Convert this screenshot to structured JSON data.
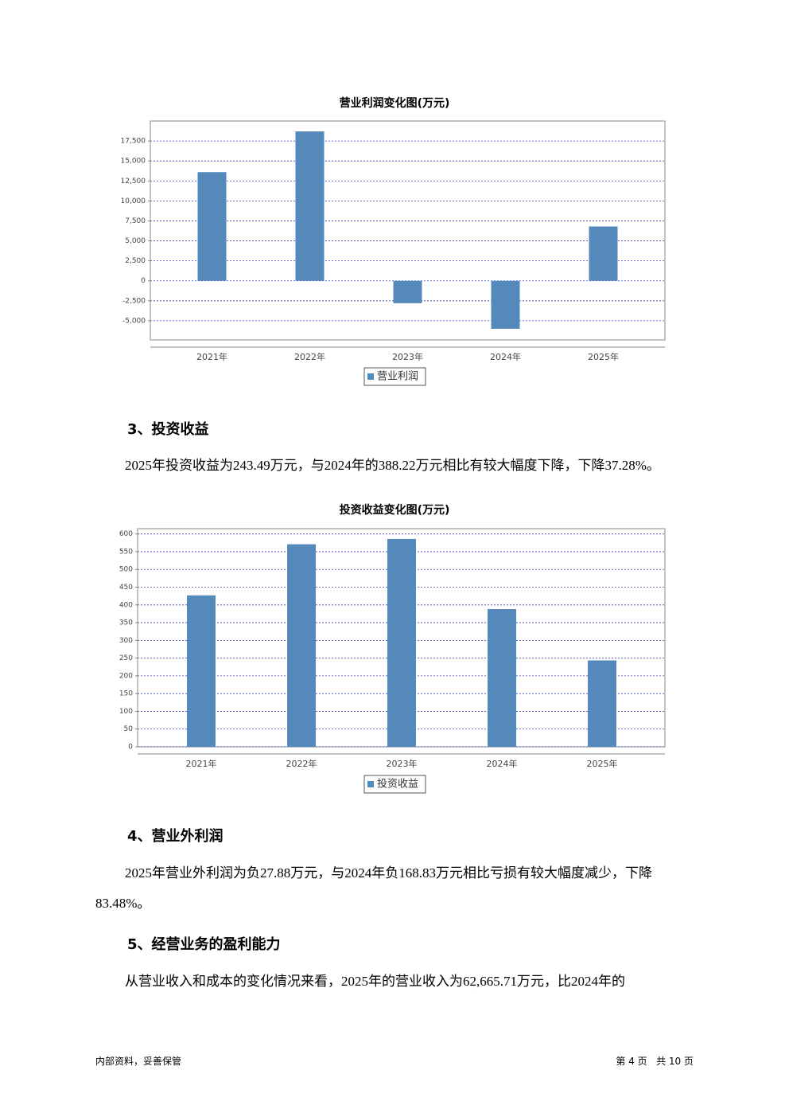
{
  "chart_data": [
    {
      "type": "bar",
      "title": "营业利润变化图(万元)",
      "categories": [
        "2021年",
        "2022年",
        "2023年",
        "2024年",
        "2025年"
      ],
      "series": [
        {
          "name": "营业利润",
          "color": "#5588bb",
          "values": [
            13600,
            18700,
            -2800,
            -6000,
            6800
          ]
        }
      ],
      "ylim": [
        -7400,
        20000
      ],
      "yticks": [
        {
          "value": -5000,
          "label": "-5,000"
        },
        {
          "value": -2500,
          "label": "-2,500"
        },
        0,
        {
          "value": 2500,
          "label": "2,500"
        },
        {
          "value": 5000,
          "label": "5,000"
        },
        {
          "value": 7500,
          "label": "7,500"
        },
        {
          "value": 10000,
          "label": "10,000"
        },
        {
          "value": 12500,
          "label": "12,500"
        },
        {
          "value": 15000,
          "label": "15,000"
        },
        {
          "value": 17500,
          "label": "17,500"
        }
      ],
      "grid": true
    },
    {
      "type": "bar",
      "title": "投资收益变化图(万元)",
      "categories": [
        "2021年",
        "2022年",
        "2023年",
        "2024年",
        "2025年"
      ],
      "series": [
        {
          "name": "投资收益",
          "color": "#5588bb",
          "values": [
            427,
            571,
            586,
            388.22,
            243.49
          ]
        }
      ],
      "ylim": [
        0,
        615
      ],
      "yticks": [
        0,
        50,
        100,
        150,
        200,
        250,
        300,
        350,
        400,
        450,
        500,
        550,
        600
      ],
      "grid": true
    }
  ],
  "sections": [
    {
      "heading": "3、投资收益",
      "paragraph": "2025年投资收益为243.49万元，与2024年的388.22万元相比有较大幅度下降，下降37.28%。"
    },
    {
      "heading": "4、营业外利润",
      "paragraph": "2025年营业外利润为负27.88万元，与2024年负168.83万元相比亏损有较大幅度减少，下降83.48%。"
    },
    {
      "heading": "5、经营业务的盈利能力",
      "paragraph": "从营业收入和成本的变化情况来看，2025年的营业收入为62,665.71万元，比2024年的"
    }
  ],
  "footer": {
    "left": "内部资料，妥善保管",
    "right": "第 4 页   共 10 页"
  }
}
